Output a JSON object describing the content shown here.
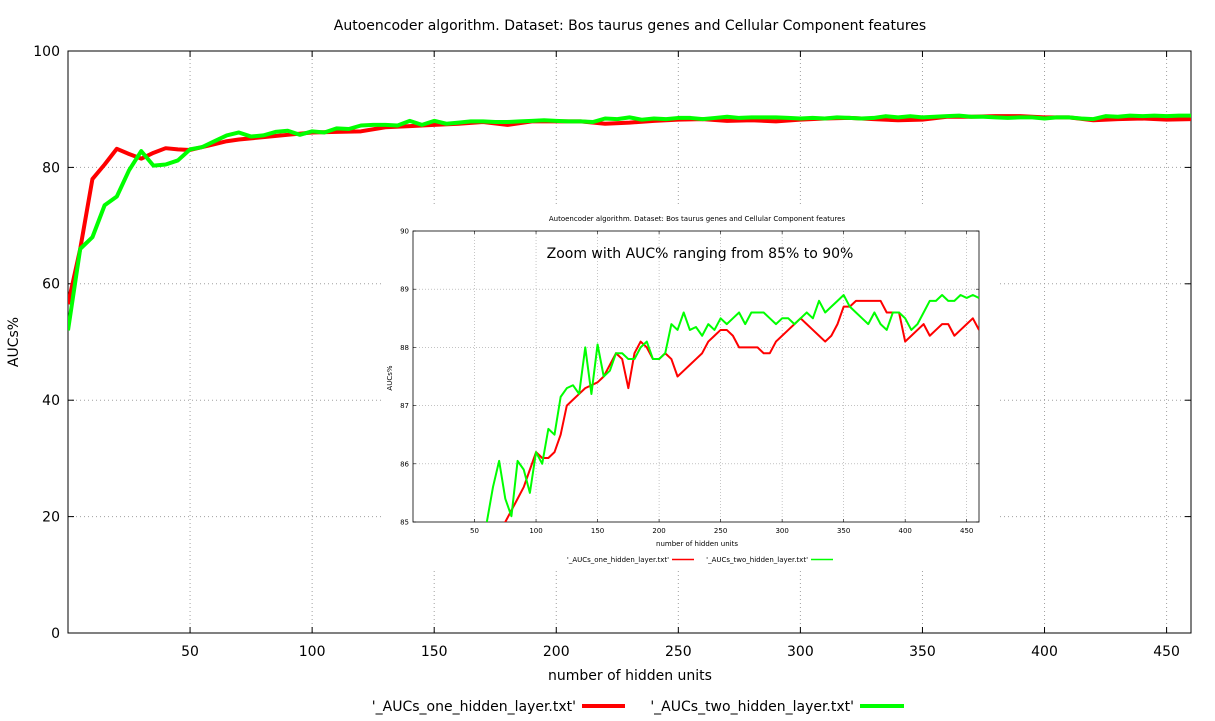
{
  "chart_data": [
    {
      "type": "line",
      "title": "Autoencoder algorithm. Dataset: Bos taurus genes and Cellular Component features",
      "xlabel": "number of hidden units",
      "ylabel": "AUCs%",
      "xlim": [
        0,
        460
      ],
      "ylim": [
        0,
        100
      ],
      "xticks": [
        50,
        100,
        150,
        200,
        250,
        300,
        350,
        400,
        450
      ],
      "yticks": [
        0,
        20,
        40,
        60,
        80,
        100
      ],
      "grid": true,
      "legend_position": "bottom",
      "series": [
        {
          "name": "'_AUCs_one_hidden_layer.txt'",
          "color": "#ff0000",
          "x": [
            0,
            5,
            10,
            15,
            20,
            25,
            30,
            35,
            40,
            45,
            50,
            55,
            60,
            65,
            70,
            80,
            90,
            100,
            110,
            120,
            130,
            140,
            150,
            160,
            170,
            180,
            190,
            200,
            210,
            220,
            230,
            240,
            250,
            260,
            270,
            280,
            290,
            300,
            310,
            320,
            330,
            340,
            350,
            360,
            370,
            380,
            390,
            400,
            410,
            420,
            430,
            440,
            450,
            460
          ],
          "values": [
            56.5,
            66,
            78,
            80.5,
            83.2,
            82.3,
            81.5,
            82.5,
            83.3,
            83.1,
            83,
            83.5,
            84,
            84.5,
            84.8,
            85.2,
            85.6,
            86,
            86.1,
            86.2,
            86.9,
            87.1,
            87.3,
            87.5,
            87.8,
            87.3,
            87.9,
            87.9,
            87.9,
            87.5,
            87.7,
            88,
            88.2,
            88.3,
            88,
            88.1,
            87.9,
            88.2,
            88.4,
            88.5,
            88.3,
            88.1,
            88.2,
            88.7,
            88.7,
            88.8,
            88.8,
            88.6,
            88.6,
            88.1,
            88.3,
            88.4,
            88.2,
            88.3
          ]
        },
        {
          "name": "'_AUCs_two_hidden_layer.txt'",
          "color": "#00ff00",
          "x": [
            0,
            5,
            10,
            15,
            20,
            25,
            30,
            35,
            40,
            45,
            50,
            55,
            60,
            65,
            70,
            75,
            80,
            85,
            90,
            95,
            100,
            105,
            110,
            115,
            120,
            125,
            130,
            135,
            140,
            145,
            150,
            155,
            160,
            165,
            170,
            175,
            180,
            185,
            190,
            195,
            200,
            205,
            210,
            215,
            220,
            225,
            230,
            235,
            240,
            245,
            250,
            255,
            260,
            265,
            270,
            275,
            280,
            285,
            290,
            295,
            300,
            305,
            310,
            315,
            320,
            325,
            330,
            335,
            340,
            345,
            350,
            355,
            360,
            365,
            370,
            375,
            380,
            385,
            390,
            395,
            400,
            405,
            410,
            415,
            420,
            425,
            430,
            435,
            440,
            445,
            450,
            455,
            460
          ],
          "values": [
            52,
            66,
            68,
            73.5,
            75,
            79.5,
            82.8,
            80.3,
            80.5,
            81.2,
            83.1,
            83.5,
            84.5,
            85.5,
            86,
            85.3,
            85.5,
            86.1,
            86.3,
            85.6,
            86.2,
            86,
            86.7,
            86.6,
            87.2,
            87.3,
            87.3,
            87.2,
            88,
            87.3,
            88,
            87.5,
            87.7,
            87.9,
            87.9,
            87.8,
            87.8,
            87.9,
            88,
            88.1,
            88,
            87.9,
            87.9,
            87.8,
            88.4,
            88.3,
            88.6,
            88.2,
            88.4,
            88.3,
            88.5,
            88.5,
            88.3,
            88.5,
            88.7,
            88.5,
            88.6,
            88.6,
            88.6,
            88.5,
            88.4,
            88.5,
            88.4,
            88.6,
            88.5,
            88.4,
            88.5,
            88.8,
            88.6,
            88.8,
            88.6,
            88.7,
            88.8,
            88.9,
            88.7,
            88.7,
            88.6,
            88.5,
            88.6,
            88.6,
            88.4,
            88.6,
            88.6,
            88.4,
            88.3,
            88.8,
            88.7,
            88.9,
            88.8,
            88.9,
            88.8,
            88.9,
            88.9
          ]
        }
      ]
    },
    {
      "type": "line",
      "title": "Autoencoder algorithm. Dataset: Bos taurus genes and Cellular Component features",
      "annotation": "Zoom with AUC% ranging from 85% to 90%",
      "xlabel": "number of hidden units",
      "ylabel": "AUCs%",
      "xlim": [
        0,
        460
      ],
      "ylim": [
        85,
        90
      ],
      "xticks": [
        50,
        100,
        150,
        200,
        250,
        300,
        350,
        400,
        450
      ],
      "yticks": [
        85,
        86,
        87,
        88,
        89,
        90
      ],
      "grid": true,
      "legend_position": "bottom",
      "series": [
        {
          "name": "'_AUCs_one_hidden_layer.txt'",
          "color": "#ff0000",
          "x": [
            70,
            75,
            80,
            85,
            90,
            95,
            100,
            105,
            110,
            115,
            120,
            125,
            130,
            135,
            140,
            145,
            150,
            155,
            160,
            165,
            170,
            175,
            180,
            185,
            190,
            195,
            200,
            205,
            210,
            215,
            220,
            225,
            230,
            235,
            240,
            245,
            250,
            255,
            260,
            265,
            270,
            275,
            280,
            285,
            290,
            295,
            300,
            305,
            310,
            315,
            320,
            325,
            330,
            335,
            340,
            345,
            350,
            355,
            360,
            365,
            370,
            375,
            380,
            385,
            390,
            395,
            400,
            405,
            410,
            415,
            420,
            425,
            430,
            435,
            440,
            445,
            450,
            455,
            460
          ],
          "values": [
            84.9,
            85,
            85.2,
            85.4,
            85.6,
            85.9,
            86.2,
            86.1,
            86.1,
            86.2,
            86.5,
            87,
            87.1,
            87.2,
            87.3,
            87.35,
            87.4,
            87.5,
            87.7,
            87.9,
            87.8,
            87.3,
            87.9,
            88.1,
            88,
            87.8,
            87.8,
            87.9,
            87.8,
            87.5,
            87.6,
            87.7,
            87.8,
            87.9,
            88.1,
            88.2,
            88.3,
            88.3,
            88.2,
            88,
            88,
            88,
            88,
            87.9,
            87.9,
            88.1,
            88.2,
            88.3,
            88.4,
            88.5,
            88.4,
            88.3,
            88.2,
            88.1,
            88.2,
            88.4,
            88.7,
            88.7,
            88.8,
            88.8,
            88.8,
            88.8,
            88.8,
            88.6,
            88.6,
            88.6,
            88.1,
            88.2,
            88.3,
            88.4,
            88.2,
            88.3,
            88.4,
            88.4,
            88.2,
            88.3,
            88.4,
            88.5,
            88.3
          ]
        },
        {
          "name": "'_AUCs_two_hidden_layer.txt'",
          "color": "#00ff00",
          "x": [
            60,
            65,
            70,
            75,
            80,
            85,
            90,
            95,
            100,
            105,
            110,
            115,
            120,
            125,
            130,
            135,
            140,
            145,
            150,
            155,
            160,
            165,
            170,
            175,
            180,
            185,
            190,
            195,
            200,
            205,
            210,
            215,
            220,
            225,
            230,
            235,
            240,
            245,
            250,
            255,
            260,
            265,
            270,
            275,
            280,
            285,
            290,
            295,
            300,
            305,
            310,
            315,
            320,
            325,
            330,
            335,
            340,
            345,
            350,
            355,
            360,
            365,
            370,
            375,
            380,
            385,
            390,
            395,
            400,
            405,
            410,
            415,
            420,
            425,
            430,
            435,
            440,
            445,
            450,
            455,
            460
          ],
          "values": [
            85,
            85.6,
            86.05,
            85.4,
            85.1,
            86.05,
            85.9,
            85.5,
            86.2,
            86,
            86.6,
            86.5,
            87.15,
            87.3,
            87.35,
            87.2,
            88,
            87.2,
            88.05,
            87.5,
            87.6,
            87.9,
            87.9,
            87.8,
            87.8,
            88,
            88.1,
            87.8,
            87.8,
            87.9,
            88.4,
            88.3,
            88.6,
            88.3,
            88.35,
            88.2,
            88.4,
            88.3,
            88.5,
            88.4,
            88.5,
            88.6,
            88.4,
            88.6,
            88.6,
            88.6,
            88.5,
            88.4,
            88.5,
            88.5,
            88.4,
            88.5,
            88.6,
            88.5,
            88.8,
            88.6,
            88.7,
            88.8,
            88.9,
            88.7,
            88.6,
            88.5,
            88.4,
            88.6,
            88.4,
            88.3,
            88.6,
            88.6,
            88.5,
            88.3,
            88.4,
            88.6,
            88.8,
            88.8,
            88.9,
            88.8,
            88.8,
            88.9,
            88.85,
            88.9,
            88.85
          ]
        }
      ]
    }
  ]
}
